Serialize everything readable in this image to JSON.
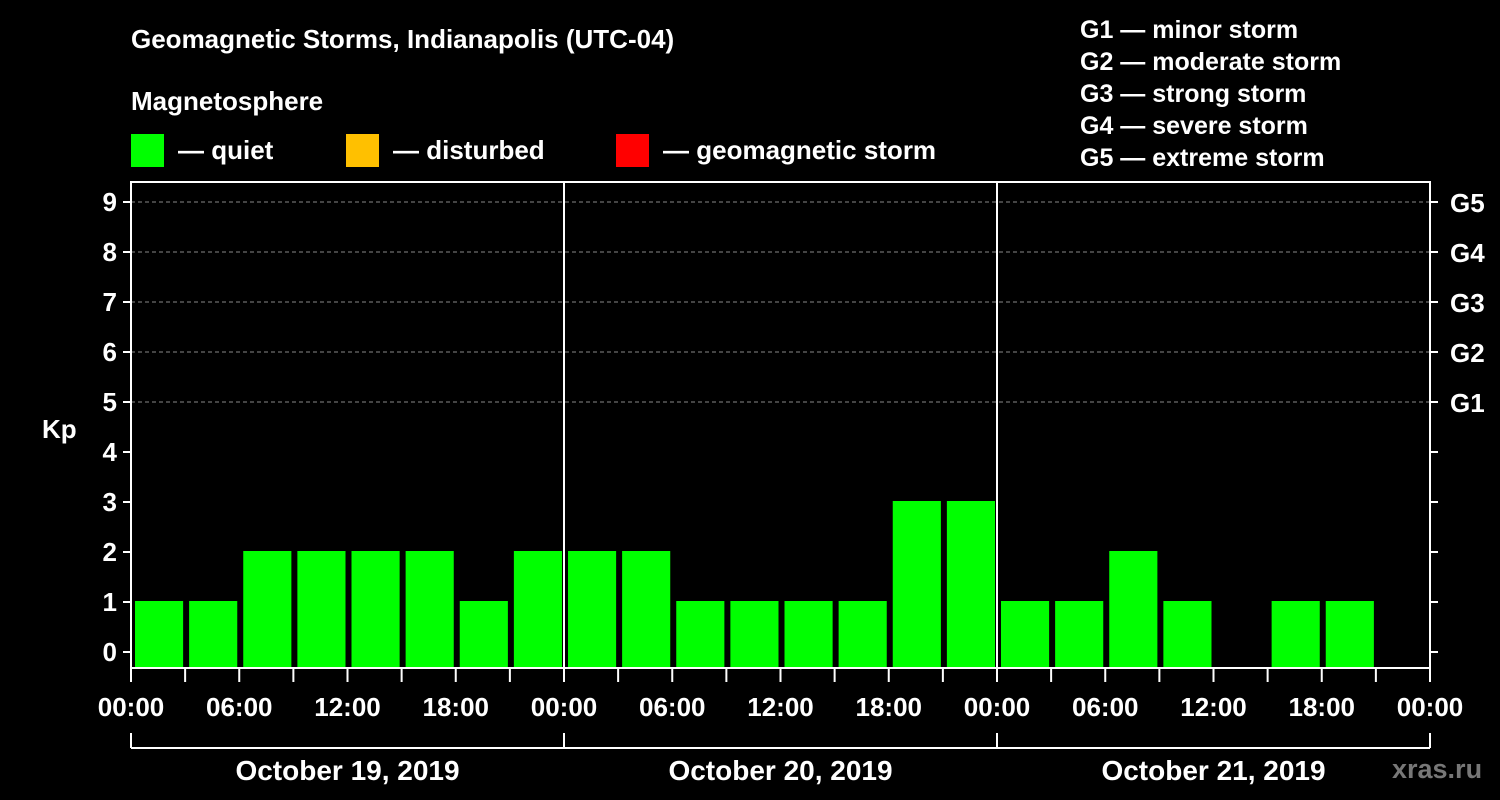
{
  "header": {
    "title": "Geomagnetic Storms, Indianapolis (UTC-04)",
    "subtitle": "Magnetosphere"
  },
  "legend": [
    {
      "label": "— quiet",
      "color": "#00ff00"
    },
    {
      "label": "— disturbed",
      "color": "#ffc000"
    },
    {
      "label": "— geomagnetic storm",
      "color": "#ff0000"
    }
  ],
  "storm_scale": [
    "G1 — minor storm",
    "G2 — moderate storm",
    "G3 — strong storm",
    "G4 — severe storm",
    "G5 — extreme storm"
  ],
  "watermark": "xras.ru",
  "chart_data": {
    "type": "bar",
    "ylabel": "Kp",
    "ylim": [
      0,
      9
    ],
    "y_ticks": [
      "0",
      "1",
      "2",
      "3",
      "4",
      "5",
      "6",
      "7",
      "8",
      "9"
    ],
    "right_axis_labels": [
      {
        "kp": 5,
        "label": "G1"
      },
      {
        "kp": 6,
        "label": "G2"
      },
      {
        "kp": 7,
        "label": "G3"
      },
      {
        "kp": 8,
        "label": "G4"
      },
      {
        "kp": 9,
        "label": "G5"
      }
    ],
    "x_tick_labels": [
      "00:00",
      "06:00",
      "12:00",
      "18:00",
      "00:00",
      "06:00",
      "12:00",
      "18:00",
      "00:00",
      "06:00",
      "12:00",
      "18:00",
      "00:00"
    ],
    "days": [
      "October 19, 2019",
      "October 20, 2019",
      "October 21, 2019"
    ],
    "interval_hours": 3,
    "values": [
      1,
      1,
      2,
      2,
      2,
      2,
      1,
      2,
      2,
      2,
      1,
      1,
      1,
      1,
      3,
      3,
      1,
      1,
      2,
      1,
      null,
      1,
      1,
      null
    ],
    "grid": "dashed horizontal at each Kp level from 5 to 9",
    "quiet_color": "#00ff00"
  }
}
